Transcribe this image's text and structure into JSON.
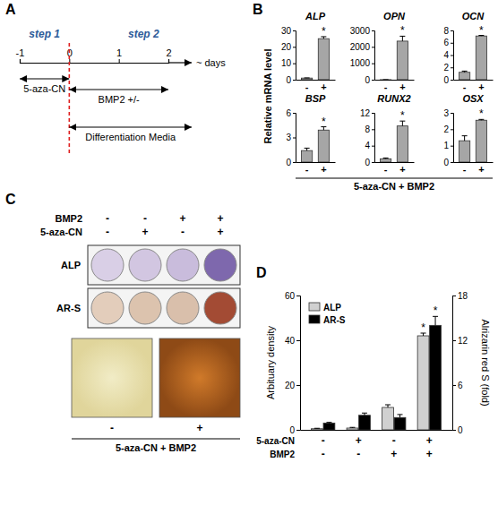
{
  "panel_labels": [
    "A",
    "B",
    "C",
    "D"
  ],
  "timeline": {
    "days": [
      -1,
      0,
      1,
      2
    ],
    "end_label": "~ days",
    "steps": [
      "step 1",
      "step 2"
    ],
    "bars": [
      {
        "label": "5-aza-CN",
        "from": -1,
        "to": 0
      },
      {
        "label": "BMP2 +/-",
        "from": 0,
        "to": 2
      },
      {
        "label": "Differentiation Media",
        "from": 0,
        "to": null
      }
    ]
  },
  "panel_b_labels": {
    "ylabel": "Relative mRNA level",
    "xlabel": "5-aza-CN + BMP2"
  },
  "chart_data": [
    {
      "type": "bar",
      "title": "ALP",
      "categories": [
        "-",
        "+"
      ],
      "values": [
        1,
        25
      ],
      "errors": [
        0.1,
        1.2
      ],
      "significance": [
        null,
        "*"
      ],
      "color": "#a6a6a6",
      "ylim": [
        0,
        30
      ],
      "yticks": [
        0,
        10,
        20,
        30
      ]
    },
    {
      "type": "bar",
      "title": "OPN",
      "categories": [
        "-",
        "+"
      ],
      "values": [
        1,
        2350
      ],
      "errors": [
        0,
        300
      ],
      "significance": [
        null,
        "*"
      ],
      "color": "#a6a6a6",
      "ylim": [
        0,
        3000
      ],
      "yticks": [
        0,
        1000,
        2000,
        3000
      ]
    },
    {
      "type": "bar",
      "title": "OCN",
      "categories": [
        "-",
        "+"
      ],
      "values": [
        1.2,
        7.1
      ],
      "errors": [
        0.2,
        0.1
      ],
      "significance": [
        null,
        "*"
      ],
      "color": "#a6a6a6",
      "ylim": [
        0,
        8
      ],
      "yticks": [
        0,
        2,
        4,
        6,
        8
      ]
    },
    {
      "type": "bar",
      "title": "BSP",
      "categories": [
        "-",
        "+"
      ],
      "values": [
        1.4,
        3.9
      ],
      "errors": [
        0.3,
        0.4
      ],
      "significance": [
        null,
        "*"
      ],
      "color": "#a6a6a6",
      "ylim": [
        0,
        6
      ],
      "yticks": [
        0,
        3,
        6
      ]
    },
    {
      "type": "bar",
      "title": "RUNX2",
      "categories": [
        "-",
        "+"
      ],
      "values": [
        0.8,
        8.8
      ],
      "errors": [
        0.2,
        1.2
      ],
      "significance": [
        null,
        "*"
      ],
      "color": "#a6a6a6",
      "ylim": [
        0,
        12
      ],
      "yticks": [
        0,
        4,
        8,
        12
      ]
    },
    {
      "type": "bar",
      "title": "OSX",
      "categories": [
        "-",
        "+"
      ],
      "values": [
        1.3,
        2.55
      ],
      "errors": [
        0.3,
        0.05
      ],
      "significance": [
        null,
        "*"
      ],
      "color": "#a6a6a6",
      "ylim": [
        0,
        3
      ],
      "yticks": [
        0,
        1,
        2,
        3
      ]
    },
    {
      "type": "bar",
      "categories": [
        null,
        null,
        null,
        null
      ],
      "x_rows": [
        {
          "label": "5-aza-CN",
          "values": [
            "-",
            "+",
            "-",
            "+"
          ]
        },
        {
          "label": "BMP2",
          "values": [
            "-",
            "-",
            "+",
            "+"
          ]
        }
      ],
      "series": [
        {
          "name": "ALP",
          "color": "#d0d0d0",
          "values": [
            0.5,
            0.8,
            10,
            42
          ],
          "errors": [
            0.2,
            0.3,
            1.2,
            1.2
          ],
          "significance": [
            null,
            null,
            null,
            "*"
          ]
        },
        {
          "name": "AR-S",
          "color": "#000000",
          "axis": "y2",
          "values": [
            0.9,
            1.95,
            1.65,
            14
          ],
          "errors": [
            0.1,
            0.3,
            0.4,
            1.2
          ],
          "significance": [
            null,
            null,
            null,
            "*"
          ]
        }
      ],
      "ylabel": "Arbituary density",
      "y2label": "Alrizarin red S (fold)",
      "ylim": [
        0,
        60
      ],
      "yticks": [
        0,
        20,
        40,
        60
      ],
      "y2lim": [
        0,
        18
      ],
      "y2ticks": [
        0,
        6,
        12,
        18
      ],
      "legend": "top-left"
    }
  ],
  "plates": {
    "columns": [
      {
        "label": "BMP2",
        "values": [
          "-",
          "-",
          "+",
          "+"
        ]
      },
      {
        "label": "5-aza-CN",
        "values": [
          "-",
          "+",
          "-",
          "+"
        ]
      }
    ],
    "rows": [
      "ALP",
      "AR-S"
    ],
    "micrographs": {
      "labels": [
        "-",
        "+"
      ],
      "caption": "5-aza-CN + BMP2"
    }
  }
}
